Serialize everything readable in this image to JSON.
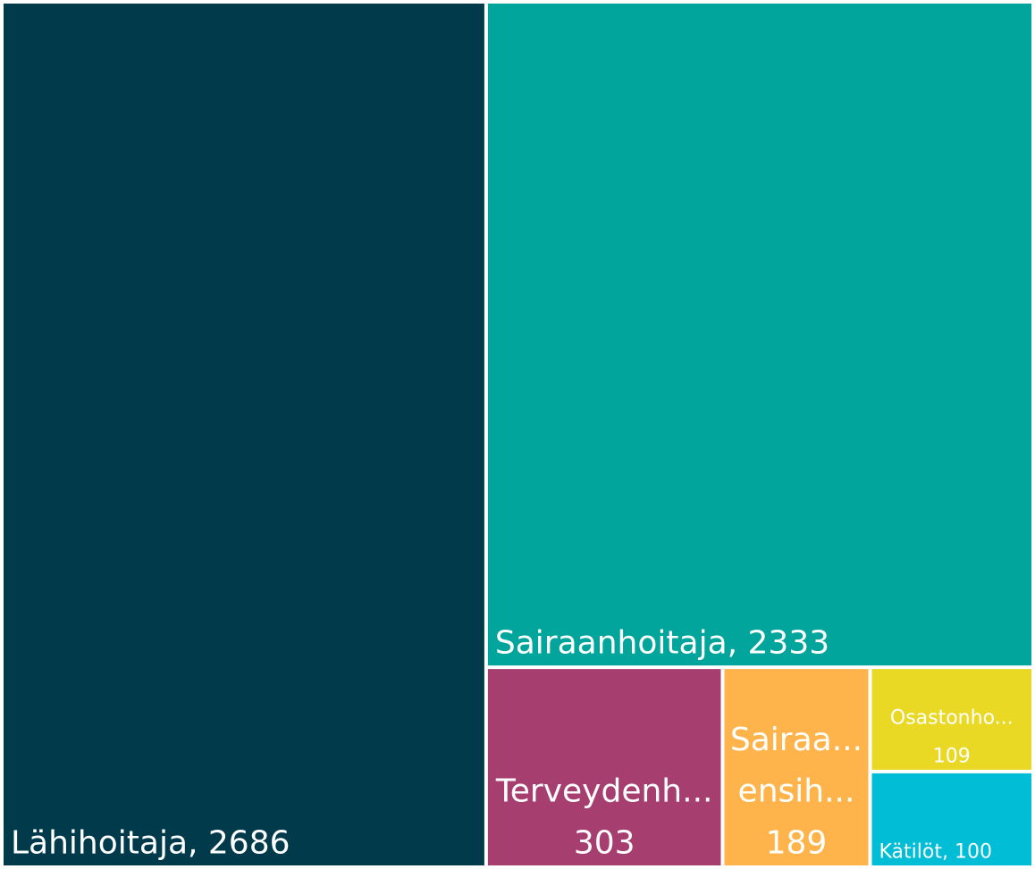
{
  "chart_data": {
    "type": "treemap",
    "values": [
      2686,
      2333,
      303,
      189,
      109,
      100
    ],
    "value_labels": [
      [
        "Lähihoitaja, 2686"
      ],
      [
        "Sairaanhoitaja, 2333"
      ],
      [
        "Terveydenh...",
        "303"
      ],
      [
        "Sairaa...",
        "ensih...",
        "189"
      ],
      [
        "Osastonho...",
        "109"
      ],
      [
        "Kätilöt, 100"
      ]
    ],
    "colors": [
      "#013b4b",
      "#01a59b",
      "#a63f6f",
      "#feb44a",
      "#e9d824",
      "#01bdd5"
    ]
  }
}
